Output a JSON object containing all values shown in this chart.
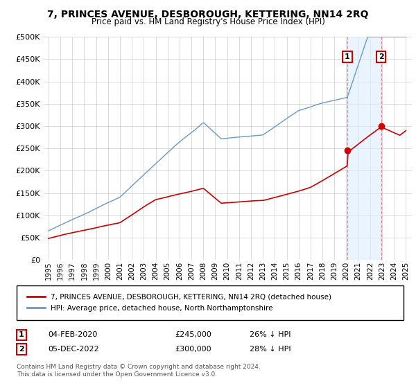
{
  "title": "7, PRINCES AVENUE, DESBOROUGH, KETTERING, NN14 2RQ",
  "subtitle": "Price paid vs. HM Land Registry's House Price Index (HPI)",
  "ytick_values": [
    0,
    50000,
    100000,
    150000,
    200000,
    250000,
    300000,
    350000,
    400000,
    450000,
    500000
  ],
  "ylim": [
    0,
    500000
  ],
  "hpi_color": "#6699cc",
  "price_color": "#cc0000",
  "shade_color": "#ddeeff",
  "grid_color": "#cccccc",
  "background_color": "#ffffff",
  "legend_label_red": "7, PRINCES AVENUE, DESBOROUGH, KETTERING, NN14 2RQ (detached house)",
  "legend_label_blue": "HPI: Average price, detached house, North Northamptonshire",
  "footer": "Contains HM Land Registry data © Crown copyright and database right 2024.\nThis data is licensed under the Open Government Licence v3.0.",
  "sale1_date": 2020.09,
  "sale1_price": 245000,
  "sale1_text": "04-FEB-2020",
  "sale1_pct": "26% ↓ HPI",
  "sale2_date": 2022.92,
  "sale2_price": 300000,
  "sale2_text": "05-DEC-2022",
  "sale2_pct": "28% ↓ HPI",
  "xtick_years": [
    1995,
    1996,
    1997,
    1998,
    1999,
    2000,
    2001,
    2002,
    2003,
    2004,
    2005,
    2006,
    2007,
    2008,
    2009,
    2010,
    2011,
    2012,
    2013,
    2014,
    2015,
    2016,
    2017,
    2018,
    2019,
    2020,
    2021,
    2022,
    2023,
    2024,
    2025
  ]
}
